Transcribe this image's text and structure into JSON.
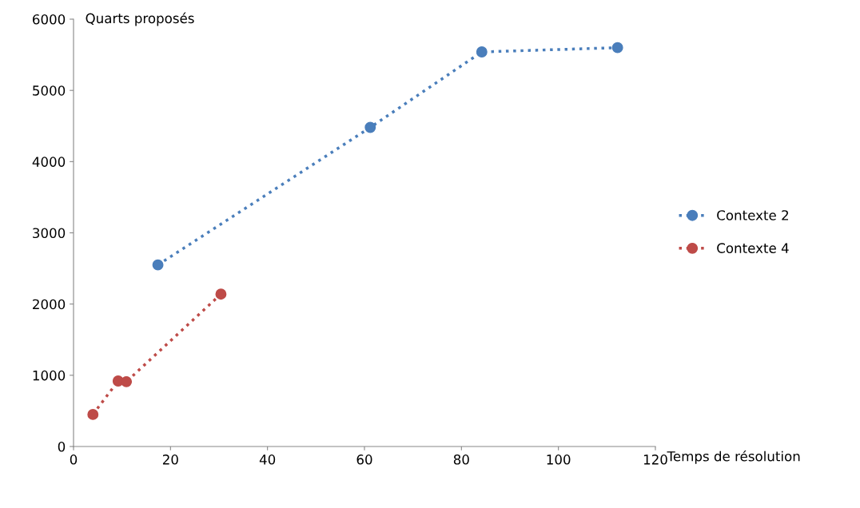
{
  "chart_data": {
    "type": "line",
    "xlabel": "Temps de résolution",
    "ylabel": "Quarts proposés",
    "series": [
      {
        "name": "Contexte 2",
        "color": "#4a7ebb",
        "x": [
          17.4,
          61.2,
          84.2,
          112.2
        ],
        "values": [
          2550,
          4480,
          5540,
          5600
        ]
      },
      {
        "name": "Contexte 4",
        "color": "#be4b48",
        "x": [
          4,
          9.2,
          10.9,
          30.4
        ],
        "values": [
          450,
          920,
          910,
          2140
        ]
      }
    ],
    "xlim": [
      0,
      120
    ],
    "xticks": [
      0,
      20,
      40,
      60,
      80,
      100,
      120
    ],
    "ylim": [
      0,
      6000
    ],
    "yticks": [
      0,
      1000,
      2000,
      3000,
      4000,
      5000,
      6000
    ],
    "grid": false,
    "legend": "right",
    "marker": "circle",
    "line_style": "dotted"
  }
}
